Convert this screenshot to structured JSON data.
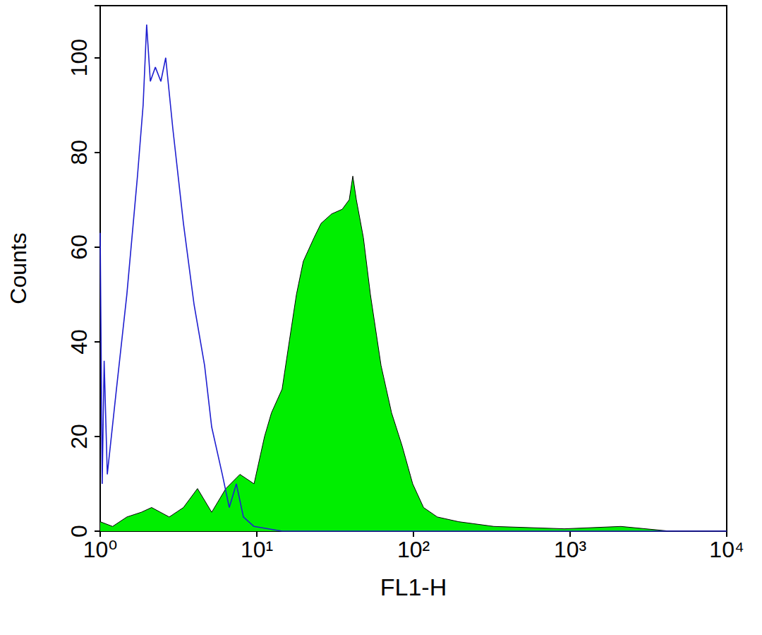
{
  "chart_data": {
    "type": "line",
    "log": "x",
    "grid": false,
    "x_label": "FL1-H",
    "y_label": "Counts",
    "xlim": [
      1,
      10000
    ],
    "xticks": [
      {
        "value": 1,
        "label": "10⁰"
      },
      {
        "value": 10,
        "label": "10¹"
      },
      {
        "value": 100,
        "label": "10²"
      },
      {
        "value": 1000,
        "label": "10³"
      },
      {
        "value": 10000,
        "label": "10⁴"
      }
    ],
    "ylim": [
      0,
      111
    ],
    "yticks": [
      0,
      20,
      40,
      60,
      80,
      100
    ],
    "series": [
      {
        "type": "line",
        "color": "#1f1fd0",
        "x": [
          1.0,
          1.03,
          1.06,
          1.11,
          1.27,
          1.48,
          1.73,
          1.88,
          1.98,
          2.09,
          2.25,
          2.44,
          2.62,
          2.91,
          3.4,
          3.97,
          4.64,
          5.15,
          6.02,
          6.67,
          7.4,
          8.21,
          9.59,
          14.5,
          50,
          200,
          1000,
          3000,
          10000
        ],
        "values": [
          63,
          10,
          36,
          12,
          30,
          50,
          75,
          90,
          107,
          95,
          98,
          95,
          100,
          85,
          65,
          48,
          35,
          22,
          12,
          5,
          10,
          3,
          1,
          0,
          0,
          0,
          0,
          0,
          0
        ]
      },
      {
        "type": "area",
        "color": "#00ee00",
        "x": [
          1.0,
          1.2,
          1.48,
          1.83,
          2.13,
          2.76,
          3.4,
          4.18,
          5.15,
          6.34,
          7.8,
          9.6,
          11.2,
          12.4,
          14.5,
          16.1,
          17.9,
          19.8,
          23.2,
          25.7,
          30.0,
          35.1,
          38.9,
          41.0,
          43.2,
          47.9,
          53.1,
          62.1,
          72.5,
          84.7,
          98.9,
          116,
          142,
          194,
          326,
          920,
          2110,
          4360,
          10000
        ],
        "values": [
          2,
          1,
          3,
          4,
          5,
          3,
          5,
          9,
          4,
          9,
          12,
          10,
          20,
          25,
          30,
          40,
          50,
          57,
          62,
          65,
          67,
          68,
          70,
          75,
          70,
          62,
          50,
          35,
          25,
          18,
          10,
          5,
          3,
          2,
          1,
          0.5,
          1,
          0,
          0
        ]
      }
    ]
  }
}
